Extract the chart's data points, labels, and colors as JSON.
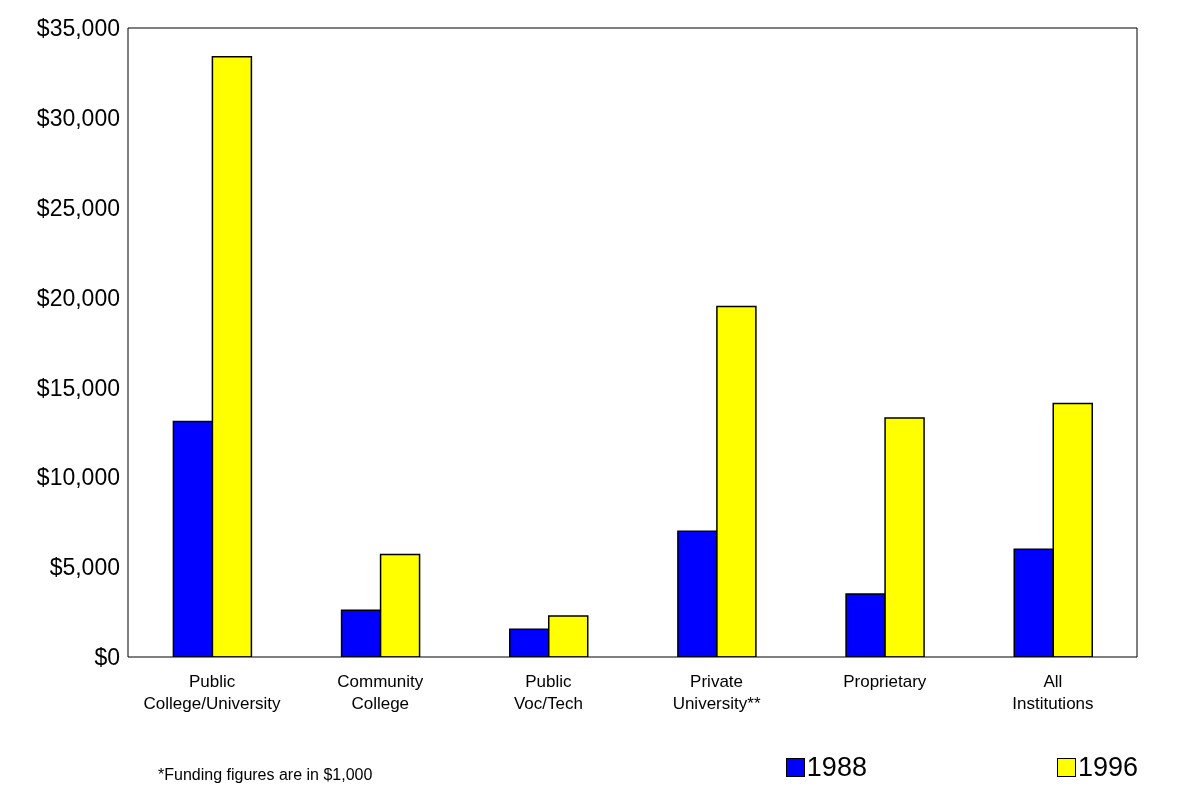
{
  "chart_data": {
    "type": "bar",
    "categories": [
      "Public College/University",
      "Community College",
      "Public Voc/Tech",
      "Private University**",
      "Proprietary",
      "All Institutions"
    ],
    "series": [
      {
        "name": "1988",
        "color": "#0000ff",
        "values": [
          13100,
          2600,
          1550,
          7000,
          3500,
          6000
        ]
      },
      {
        "name": "1996",
        "color": "#ffff00",
        "values": [
          33400,
          5700,
          2280,
          19500,
          13300,
          14100
        ]
      }
    ],
    "ylim": [
      0,
      35000
    ],
    "yticks": [
      {
        "value": 0,
        "label": "$0"
      },
      {
        "value": 5000,
        "label": "$5,000"
      },
      {
        "value": 10000,
        "label": "$10,000"
      },
      {
        "value": 15000,
        "label": "$15,000"
      },
      {
        "value": 20000,
        "label": "$20,000"
      },
      {
        "value": 25000,
        "label": "$25,000"
      },
      {
        "value": 30000,
        "label": "$30,000"
      },
      {
        "value": 35000,
        "label": "$35,000"
      }
    ],
    "legend": "bottom right",
    "annotations": [
      "*Funding figures are in $1,000"
    ]
  }
}
